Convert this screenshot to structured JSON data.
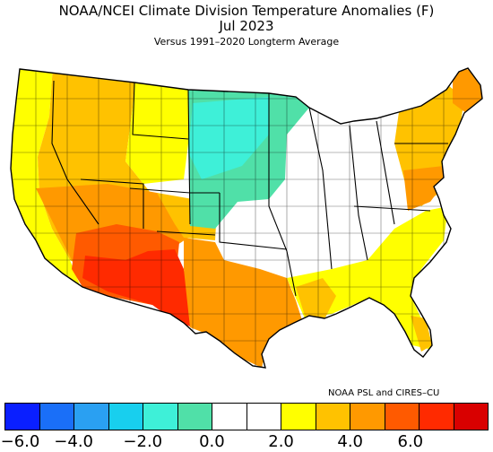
{
  "title": "NOAA/NCEI Climate Division Temperature Anomalies (F)",
  "period": "Jul 2023",
  "subtitle": "Versus 1991–2020 Longterm Average",
  "credit": "NOAA PSL and CIRES–CU",
  "legend": {
    "colors": [
      "#0a1fff",
      "#1a6ff8",
      "#2aa0f2",
      "#18cfee",
      "#3ef0d8",
      "#50e0a8",
      "#ffffff",
      "#ffffff",
      "#ffff00",
      "#ffc200",
      "#ff9900",
      "#ff5a00",
      "#ff2a00",
      "#d90000"
    ],
    "ticks": [
      "−6.0",
      "−4.0",
      "−2.0",
      "0.0",
      "2.0",
      "4.0",
      "6.0"
    ]
  },
  "regions": {
    "pacific_coast": {
      "anomaly": "1.0 to 2.0",
      "color": "#ffff00"
    },
    "west_interior": {
      "anomaly": "2.0 to 3.0",
      "color": "#ffc200"
    },
    "southwest_desert": {
      "anomaly": "4.0 to 5.0",
      "color": "#ff5a00"
    },
    "new_mexico_texas_border": {
      "anomaly": "5.0 to 6.0",
      "color": "#ff2a00"
    },
    "texas_oklahoma": {
      "anomaly": "3.0 to 4.0",
      "color": "#ff9900"
    },
    "northern_plains": {
      "anomaly": "-2.0 to -1.0",
      "color": "#50e0a8"
    },
    "upper_midwest": {
      "anomaly": "-3.0 to -2.0",
      "color": "#3ef0d8"
    },
    "central_east": {
      "anomaly": "-1.0 to 1.0",
      "color": "#ffffff"
    },
    "gulf_southeast": {
      "anomaly": "1.0 to 2.0",
      "color": "#ffff00"
    },
    "northeast": {
      "anomaly": "2.0 to 3.0",
      "color": "#ffc200"
    },
    "maine": {
      "anomaly": "3.0 to 4.0",
      "color": "#ff9900"
    }
  }
}
